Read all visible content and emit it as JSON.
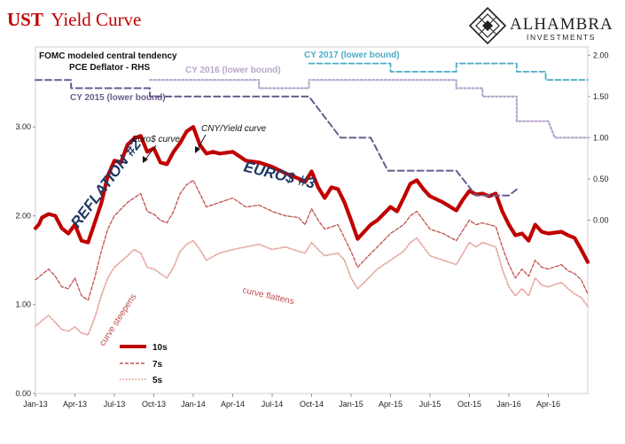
{
  "title": {
    "bold": "UST",
    "rest": "Yield Curve"
  },
  "logo": {
    "name": "ALHAMBRA",
    "sub": "INVESTMENTS"
  },
  "colors": {
    "y10": "#c00000",
    "y7": "#c0504d",
    "y5": "#e6a8a0",
    "cy2015": "#6b5b8e",
    "cy2016": "#b7a6cc",
    "cy2017": "#4bacc6",
    "annotation_blue": "#1f3864",
    "curve_text": "#c0504d"
  },
  "chart_data": {
    "type": "line",
    "x_ticks": [
      "Jan-13",
      "Apr-13",
      "Jul-13",
      "Oct-13",
      "Jan-14",
      "Apr-14",
      "Jul-14",
      "Oct-14",
      "Jan-15",
      "Apr-15",
      "Jul-15",
      "Oct-15",
      "Jan-16",
      "Apr-16"
    ],
    "x_range": [
      "2013-01",
      "2016-07"
    ],
    "y_left": {
      "ticks": [
        "0.00",
        "1.00",
        "2.00",
        "3.00"
      ],
      "range": [
        0,
        3.9
      ]
    },
    "y_right": {
      "ticks": [
        "0.00",
        "0.50",
        "1.00",
        "1.50",
        "2.00"
      ],
      "range": [
        -2.1,
        2.1
      ]
    },
    "legend": {
      "placement": "bottom-left",
      "labels": [
        "10s",
        "7s",
        "5s"
      ]
    },
    "series": [
      {
        "name": "10s",
        "axis": "left",
        "points": [
          [
            0,
            1.86
          ],
          [
            0.25,
            1.9
          ],
          [
            0.5,
            1.98
          ],
          [
            1,
            2.02
          ],
          [
            1.5,
            2.0
          ],
          [
            2,
            1.86
          ],
          [
            2.5,
            1.8
          ],
          [
            3,
            1.9
          ],
          [
            3.5,
            1.72
          ],
          [
            4,
            1.7
          ],
          [
            4.5,
            1.92
          ],
          [
            5,
            2.14
          ],
          [
            5.5,
            2.45
          ],
          [
            6,
            2.62
          ],
          [
            6.5,
            2.6
          ],
          [
            7,
            2.8
          ],
          [
            7.5,
            2.87
          ],
          [
            8,
            2.9
          ],
          [
            8.5,
            2.72
          ],
          [
            9,
            2.76
          ],
          [
            9.5,
            2.6
          ],
          [
            10,
            2.58
          ],
          [
            10.5,
            2.72
          ],
          [
            11,
            2.82
          ],
          [
            11.5,
            2.95
          ],
          [
            12,
            3.0
          ],
          [
            12.5,
            2.8
          ],
          [
            13,
            2.7
          ],
          [
            13.5,
            2.72
          ],
          [
            14,
            2.7
          ],
          [
            15,
            2.72
          ],
          [
            16,
            2.62
          ],
          [
            17,
            2.6
          ],
          [
            18,
            2.55
          ],
          [
            19,
            2.48
          ],
          [
            20,
            2.42
          ],
          [
            20.5,
            2.38
          ],
          [
            21,
            2.5
          ],
          [
            21.5,
            2.32
          ],
          [
            22,
            2.2
          ],
          [
            22.5,
            2.32
          ],
          [
            23,
            2.3
          ],
          [
            23.5,
            2.15
          ],
          [
            24,
            1.95
          ],
          [
            24.5,
            1.74
          ],
          [
            25,
            1.82
          ],
          [
            25.5,
            1.9
          ],
          [
            26,
            1.95
          ],
          [
            27,
            2.1
          ],
          [
            27.5,
            2.05
          ],
          [
            28,
            2.2
          ],
          [
            28.5,
            2.36
          ],
          [
            29,
            2.4
          ],
          [
            29.5,
            2.3
          ],
          [
            30,
            2.22
          ],
          [
            31,
            2.15
          ],
          [
            32,
            2.06
          ],
          [
            32.5,
            2.18
          ],
          [
            33,
            2.28
          ],
          [
            33.5,
            2.24
          ],
          [
            34,
            2.25
          ],
          [
            34.5,
            2.22
          ],
          [
            35,
            2.25
          ],
          [
            35.5,
            2.05
          ],
          [
            36,
            1.9
          ],
          [
            36.5,
            1.78
          ],
          [
            37,
            1.8
          ],
          [
            37.5,
            1.72
          ],
          [
            38,
            1.9
          ],
          [
            38.5,
            1.82
          ],
          [
            39,
            1.8
          ],
          [
            40,
            1.82
          ],
          [
            40.5,
            1.78
          ],
          [
            41,
            1.75
          ],
          [
            41.5,
            1.62
          ],
          [
            42,
            1.48
          ]
        ]
      },
      {
        "name": "7s",
        "axis": "left",
        "points": [
          [
            0,
            1.28
          ],
          [
            0.5,
            1.34
          ],
          [
            1,
            1.4
          ],
          [
            1.5,
            1.32
          ],
          [
            2,
            1.2
          ],
          [
            2.5,
            1.18
          ],
          [
            3,
            1.3
          ],
          [
            3.5,
            1.1
          ],
          [
            4,
            1.05
          ],
          [
            4.5,
            1.3
          ],
          [
            5,
            1.6
          ],
          [
            5.5,
            1.85
          ],
          [
            6,
            2.0
          ],
          [
            7,
            2.15
          ],
          [
            7.5,
            2.2
          ],
          [
            8,
            2.25
          ],
          [
            8.5,
            2.05
          ],
          [
            9,
            2.02
          ],
          [
            9.5,
            1.95
          ],
          [
            10,
            1.92
          ],
          [
            10.5,
            2.05
          ],
          [
            11,
            2.25
          ],
          [
            11.5,
            2.35
          ],
          [
            12,
            2.4
          ],
          [
            12.5,
            2.25
          ],
          [
            13,
            2.1
          ],
          [
            14,
            2.15
          ],
          [
            15,
            2.2
          ],
          [
            16,
            2.1
          ],
          [
            17,
            2.12
          ],
          [
            18,
            2.05
          ],
          [
            19,
            2.0
          ],
          [
            20,
            1.98
          ],
          [
            20.5,
            1.9
          ],
          [
            21,
            2.08
          ],
          [
            21.5,
            1.95
          ],
          [
            22,
            1.85
          ],
          [
            23,
            1.9
          ],
          [
            23.5,
            1.75
          ],
          [
            24,
            1.6
          ],
          [
            24.5,
            1.42
          ],
          [
            25,
            1.5
          ],
          [
            26,
            1.65
          ],
          [
            27,
            1.8
          ],
          [
            28,
            1.9
          ],
          [
            28.5,
            2.0
          ],
          [
            29,
            2.05
          ],
          [
            29.5,
            1.95
          ],
          [
            30,
            1.85
          ],
          [
            31,
            1.8
          ],
          [
            32,
            1.72
          ],
          [
            33,
            1.95
          ],
          [
            33.5,
            1.9
          ],
          [
            34,
            1.92
          ],
          [
            35,
            1.88
          ],
          [
            35.5,
            1.65
          ],
          [
            36,
            1.45
          ],
          [
            36.5,
            1.3
          ],
          [
            37,
            1.4
          ],
          [
            37.5,
            1.32
          ],
          [
            38,
            1.5
          ],
          [
            38.5,
            1.42
          ],
          [
            39,
            1.4
          ],
          [
            40,
            1.45
          ],
          [
            40.5,
            1.38
          ],
          [
            41,
            1.35
          ],
          [
            41.5,
            1.28
          ],
          [
            42,
            1.12
          ]
        ]
      },
      {
        "name": "5s",
        "axis": "left",
        "points": [
          [
            0,
            0.76
          ],
          [
            0.5,
            0.82
          ],
          [
            1,
            0.88
          ],
          [
            1.5,
            0.8
          ],
          [
            2,
            0.72
          ],
          [
            2.5,
            0.7
          ],
          [
            3,
            0.75
          ],
          [
            3.5,
            0.68
          ],
          [
            4,
            0.66
          ],
          [
            4.5,
            0.85
          ],
          [
            5,
            1.1
          ],
          [
            5.5,
            1.3
          ],
          [
            6,
            1.42
          ],
          [
            7,
            1.55
          ],
          [
            7.5,
            1.62
          ],
          [
            8,
            1.58
          ],
          [
            8.5,
            1.42
          ],
          [
            9,
            1.4
          ],
          [
            9.5,
            1.35
          ],
          [
            10,
            1.3
          ],
          [
            10.5,
            1.42
          ],
          [
            11,
            1.6
          ],
          [
            11.5,
            1.68
          ],
          [
            12,
            1.72
          ],
          [
            12.5,
            1.62
          ],
          [
            13,
            1.5
          ],
          [
            14,
            1.58
          ],
          [
            15,
            1.62
          ],
          [
            16,
            1.65
          ],
          [
            17,
            1.68
          ],
          [
            18,
            1.62
          ],
          [
            19,
            1.65
          ],
          [
            20,
            1.6
          ],
          [
            20.5,
            1.58
          ],
          [
            21,
            1.7
          ],
          [
            21.5,
            1.62
          ],
          [
            22,
            1.55
          ],
          [
            23,
            1.58
          ],
          [
            23.5,
            1.5
          ],
          [
            24,
            1.3
          ],
          [
            24.5,
            1.18
          ],
          [
            25,
            1.25
          ],
          [
            26,
            1.4
          ],
          [
            27,
            1.5
          ],
          [
            28,
            1.6
          ],
          [
            28.5,
            1.7
          ],
          [
            29,
            1.75
          ],
          [
            29.5,
            1.65
          ],
          [
            30,
            1.55
          ],
          [
            31,
            1.5
          ],
          [
            32,
            1.45
          ],
          [
            33,
            1.7
          ],
          [
            33.5,
            1.65
          ],
          [
            34,
            1.7
          ],
          [
            35,
            1.65
          ],
          [
            35.5,
            1.4
          ],
          [
            36,
            1.2
          ],
          [
            36.5,
            1.1
          ],
          [
            37,
            1.18
          ],
          [
            37.5,
            1.1
          ],
          [
            38,
            1.3
          ],
          [
            38.5,
            1.22
          ],
          [
            39,
            1.2
          ],
          [
            40,
            1.25
          ],
          [
            40.5,
            1.18
          ],
          [
            41,
            1.12
          ],
          [
            41.5,
            1.08
          ],
          [
            42,
            0.98
          ]
        ]
      },
      {
        "name": "CY 2015 (lower bound)",
        "axis": "right",
        "points": [
          [
            0,
            1.7
          ],
          [
            2.7,
            1.7
          ],
          [
            2.7,
            1.6
          ],
          [
            8.7,
            1.6
          ],
          [
            8.7,
            1.5
          ],
          [
            20.8,
            1.5
          ],
          [
            23.2,
            1.0
          ],
          [
            25.5,
            1.0
          ],
          [
            26.8,
            0.6
          ],
          [
            32,
            0.6
          ],
          [
            33.5,
            0.3
          ],
          [
            36,
            0.3
          ],
          [
            36.8,
            0.4
          ]
        ]
      },
      {
        "name": "CY 2016 (lower bound)",
        "axis": "right",
        "points": [
          [
            8.7,
            1.7
          ],
          [
            17,
            1.7
          ],
          [
            17,
            1.6
          ],
          [
            20.8,
            1.6
          ],
          [
            20.8,
            1.7
          ],
          [
            32,
            1.7
          ],
          [
            32,
            1.6
          ],
          [
            34,
            1.6
          ],
          [
            34,
            1.5
          ],
          [
            36.6,
            1.5
          ],
          [
            36.6,
            1.2
          ],
          [
            39,
            1.2
          ],
          [
            39.5,
            1.0
          ],
          [
            42,
            1.0
          ]
        ]
      },
      {
        "name": "CY 2017 (lower bound)",
        "axis": "right",
        "points": [
          [
            20.8,
            1.9
          ],
          [
            27,
            1.9
          ],
          [
            27,
            1.8
          ],
          [
            32,
            1.8
          ],
          [
            32,
            1.9
          ],
          [
            36.6,
            1.9
          ],
          [
            36.6,
            1.8
          ],
          [
            38.8,
            1.8
          ],
          [
            38.8,
            1.7
          ],
          [
            42,
            1.7
          ]
        ]
      }
    ],
    "labels": {
      "fomc1": "FOMC modeled central tendency",
      "fomc2": "PCE Deflator - RHS",
      "cy2015": "CY 2015 (lower bound)",
      "cy2016": "CY 2016 (lower bound)",
      "cy2017": "CY 2017 (lower bound)",
      "reflation": "REFLATION #2",
      "euros3": "EURO$ #3",
      "euros_curve": "Euro$ curve",
      "cny_curve": "CNY/Yield curve",
      "curve_steepens": "curve steepens",
      "curve_flattens": "curve flattens"
    }
  }
}
